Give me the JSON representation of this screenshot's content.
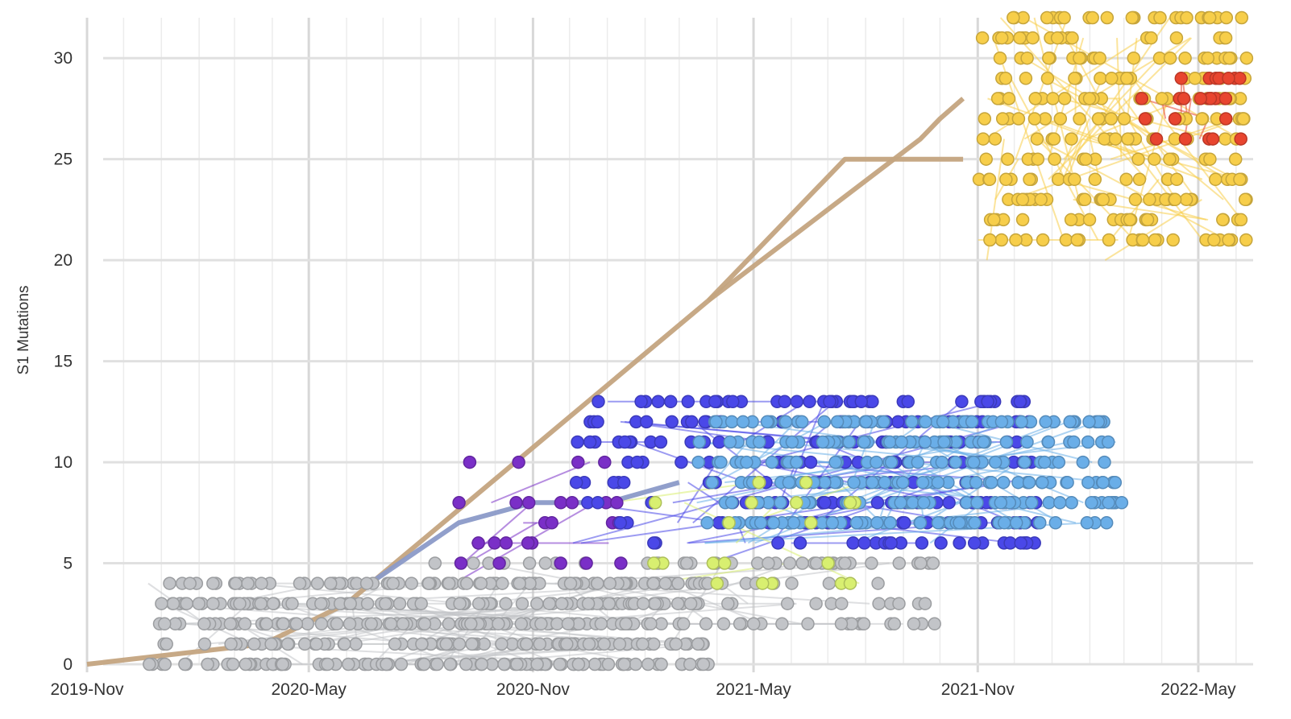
{
  "chart_data": {
    "type": "scatter",
    "title": "",
    "xlabel": "",
    "ylabel": "S1 Mutations",
    "x_range": [
      "2019-11-01",
      "2022-06-15"
    ],
    "ylim": [
      0,
      32
    ],
    "x_ticks": [
      {
        "date": "2019-11-01",
        "label": "2019-Nov"
      },
      {
        "date": "2020-05-01",
        "label": "2020-May"
      },
      {
        "date": "2020-11-01",
        "label": "2020-Nov"
      },
      {
        "date": "2021-05-01",
        "label": "2021-May"
      },
      {
        "date": "2021-11-01",
        "label": "2021-Nov"
      },
      {
        "date": "2022-05-01",
        "label": "2022-May"
      }
    ],
    "y_ticks": [
      0,
      5,
      10,
      15,
      20,
      25,
      30
    ],
    "grid": true,
    "legend": "none",
    "clusters": [
      {
        "group": "gray-early",
        "color": "#c2c4c8",
        "x_start": "2019-12-20",
        "x_end": "2021-03-25",
        "y_levels": [
          0,
          1,
          2,
          3,
          4
        ],
        "approx_points": 420
      },
      {
        "group": "gray-late",
        "color": "#c2c4c8",
        "x_start": "2020-08-01",
        "x_end": "2021-10-01",
        "y_levels": [
          2,
          3,
          4,
          5
        ],
        "approx_points": 120
      },
      {
        "group": "purple-early",
        "color": "#7a2fc7",
        "x_start": "2020-08-15",
        "x_end": "2021-01-15",
        "y_levels": [
          5,
          6,
          7,
          8,
          10
        ],
        "approx_points": 25
      },
      {
        "group": "blue-violet",
        "color": "#4a48e8",
        "x_start": "2020-12-01",
        "x_end": "2021-12-20",
        "y_levels": [
          6,
          7,
          8,
          9,
          10,
          11,
          12,
          13
        ],
        "approx_points": 240
      },
      {
        "group": "light-blue",
        "color": "#6aaee8",
        "x_start": "2021-03-15",
        "x_end": "2022-02-28",
        "y_levels": [
          7,
          8,
          9,
          10,
          11,
          12
        ],
        "approx_points": 280
      },
      {
        "group": "lime",
        "color": "#d8ef70",
        "x_start": "2020-12-15",
        "x_end": "2021-08-01",
        "y_levels": [
          4,
          5,
          7,
          8,
          9
        ],
        "approx_points": 20
      },
      {
        "group": "yellow",
        "color": "#f7ce4a",
        "x_start": "2021-11-01",
        "x_end": "2022-06-10",
        "y_levels": [
          21,
          22,
          23,
          24,
          25,
          26,
          27,
          28,
          29,
          30,
          31,
          32
        ],
        "approx_points": 270
      },
      {
        "group": "red-orange",
        "color": "#e8452f",
        "x_start": "2022-03-15",
        "x_end": "2022-06-10",
        "y_levels": [
          26,
          27,
          28,
          29
        ],
        "approx_points": 25
      }
    ],
    "trunk_lines": [
      {
        "color": "#c4a480",
        "points": [
          [
            "2019-11-01",
            0
          ],
          [
            "2020-03-25",
            1
          ],
          [
            "2020-06-01",
            3
          ],
          [
            "2021-03-25",
            18
          ],
          [
            "2021-07-15",
            25
          ],
          [
            "2021-10-20",
            25
          ]
        ]
      },
      {
        "color": "#c4a480",
        "points": [
          [
            "2021-03-25",
            18
          ],
          [
            "2021-09-15",
            26
          ],
          [
            "2021-10-01",
            27
          ],
          [
            "2021-10-20",
            28
          ]
        ]
      },
      {
        "color": "#8b9ac8",
        "points": [
          [
            "2020-06-20",
            4
          ],
          [
            "2020-09-01",
            7
          ],
          [
            "2020-11-01",
            8
          ],
          [
            "2021-01-01",
            8
          ],
          [
            "2021-03-01",
            9
          ]
        ]
      }
    ]
  }
}
